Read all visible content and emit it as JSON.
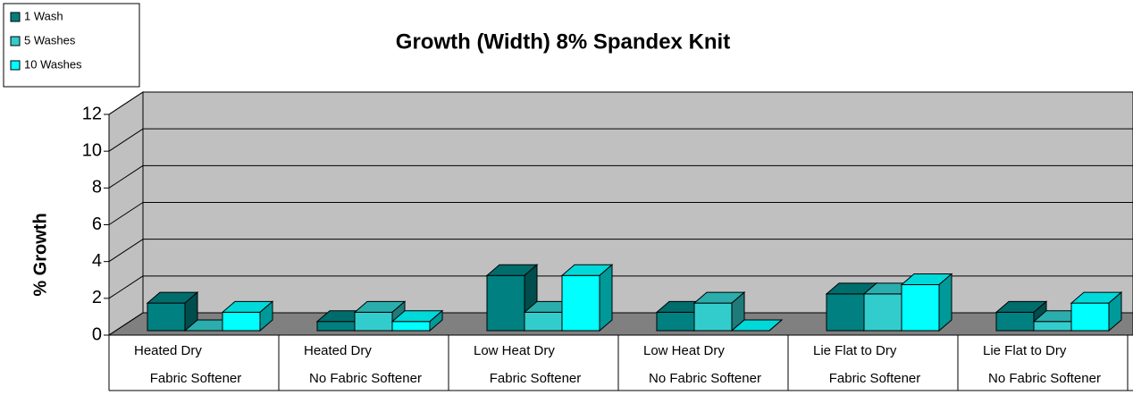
{
  "chart_data": {
    "type": "bar",
    "title": "Growth (Width) 8% Spandex Knit",
    "y_label": "% Growth",
    "categories": [
      [
        "Heated Dry",
        "Fabric Softener"
      ],
      [
        "Heated Dry",
        "No Fabric Softener"
      ],
      [
        "Low Heat Dry",
        "Fabric Softener"
      ],
      [
        "Low Heat Dry",
        "No Fabric Softener"
      ],
      [
        "Lie Flat to Dry",
        "Fabric Softener"
      ],
      [
        "Lie Flat to Dry",
        "No Fabric Softener"
      ]
    ],
    "series": [
      {
        "name": "1 Wash",
        "color": "#008080",
        "values": [
          1.5,
          0.5,
          3,
          1,
          2,
          1
        ]
      },
      {
        "name": "5 Washes",
        "color": "#33cccc",
        "values": [
          0,
          1,
          1,
          1.5,
          2,
          0.5
        ]
      },
      {
        "name": "10 Washes",
        "color": "#00ffff",
        "values": [
          1,
          0.5,
          3,
          0,
          2.5,
          1.5
        ]
      }
    ],
    "ylim": [
      0,
      12
    ],
    "yticks": [
      0,
      2,
      4,
      6,
      8,
      10,
      12
    ],
    "grid": true,
    "legend": "top-left"
  }
}
